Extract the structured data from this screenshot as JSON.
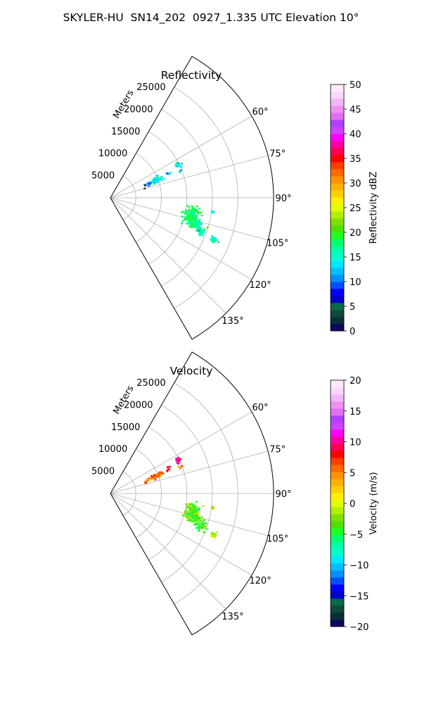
{
  "figure": {
    "title": "SKYLER-HU  SN14_202  0927_1.335 UTC Elevation 10°"
  },
  "chart_data": [
    {
      "type": "scatter",
      "subtype": "polar-sector",
      "title": "Reflectivity",
      "radial_label": "Meters",
      "radial_ticks": [
        "5000",
        "10000",
        "15000",
        "20000",
        "25000"
      ],
      "radial_ticks_values": [
        5000,
        10000,
        15000,
        20000,
        25000
      ],
      "rlim": [
        0,
        32000
      ],
      "azimuth_range_deg": [
        30,
        150
      ],
      "angle_ticks": [
        "60°",
        "75°",
        "90°",
        "105°",
        "120°",
        "135°"
      ],
      "angle_ticks_values": [
        60,
        75,
        90,
        105,
        120,
        135
      ],
      "grid": true,
      "colorbar": {
        "label": "Reflectivity dBZ",
        "range": [
          0,
          50
        ],
        "ticks": [
          "0",
          "5",
          "10",
          "15",
          "20",
          "25",
          "30",
          "35",
          "40",
          "45",
          "50"
        ],
        "ticks_values": [
          0,
          5,
          10,
          15,
          20,
          25,
          30,
          35,
          40,
          45,
          50
        ],
        "colormap": [
          "#0a0a5a",
          "#0b2f3a",
          "#0f4a3c",
          "#0a6a46",
          "#0000c8",
          "#0000ff",
          "#0050ff",
          "#0090ff",
          "#00c0ff",
          "#00e8ff",
          "#00ffd0",
          "#00ffa8",
          "#00ff70",
          "#20ff20",
          "#50e000",
          "#80e000",
          "#b0f000",
          "#e0ff00",
          "#fff000",
          "#ffd000",
          "#ffb000",
          "#ff9000",
          "#ff6a00",
          "#ff3c00",
          "#ff0000",
          "#ff0050",
          "#ff00a0",
          "#ff00ff",
          "#d040ff",
          "#b040ff",
          "#e070f0",
          "#f090f0",
          "#f0b8f8",
          "#f8d8fc",
          "#fde8fe"
        ],
        "placement": "right"
      },
      "clusters": [
        {
          "az": 64,
          "r": 14800,
          "dr": 650,
          "daz": 2.5,
          "value": 13,
          "n": 18
        },
        {
          "az": 69,
          "r": 14800,
          "dr": 380,
          "daz": 1.3,
          "value": 13,
          "n": 5
        },
        {
          "az": 69,
          "r": 9800,
          "dr": 1050,
          "daz": 2.8,
          "value": 14,
          "n": 70
        },
        {
          "az": 70,
          "r": 8000,
          "dr": 380,
          "daz": 2.2,
          "value": 9,
          "n": 18
        },
        {
          "az": 73,
          "r": 7200,
          "dr": 300,
          "daz": 3.5,
          "value": 4,
          "n": 4
        },
        {
          "az": 67,
          "r": 12300,
          "dr": 500,
          "daz": 2,
          "value": 12,
          "n": 7
        },
        {
          "az": 98,
          "r": 20300,
          "dr": 250,
          "daz": 0.8,
          "value": 15,
          "n": 5
        },
        {
          "az": 102,
          "r": 16400,
          "dr": 1500,
          "daz": 5.5,
          "value": 18,
          "n": 150
        },
        {
          "az": 107,
          "r": 17300,
          "dr": 1500,
          "daz": 3,
          "value": 17,
          "n": 80
        },
        {
          "az": 110,
          "r": 18900,
          "dr": 900,
          "daz": 2.2,
          "value": 16,
          "n": 45
        },
        {
          "az": 112,
          "r": 21900,
          "dr": 700,
          "daz": 1.5,
          "value": 15,
          "n": 30
        }
      ]
    },
    {
      "type": "scatter",
      "subtype": "polar-sector",
      "title": "Velocity",
      "radial_label": "Meters",
      "radial_ticks": [
        "5000",
        "10000",
        "15000",
        "20000",
        "25000"
      ],
      "radial_ticks_values": [
        5000,
        10000,
        15000,
        20000,
        25000
      ],
      "rlim": [
        0,
        32000
      ],
      "azimuth_range_deg": [
        30,
        150
      ],
      "angle_ticks": [
        "60°",
        "75°",
        "90°",
        "105°",
        "120°",
        "135°"
      ],
      "angle_ticks_values": [
        60,
        75,
        90,
        105,
        120,
        135
      ],
      "grid": true,
      "colorbar": {
        "label": "Velocity (m/s)",
        "range": [
          -20,
          20
        ],
        "ticks": [
          "−20",
          "−15",
          "−10",
          "−5",
          "0",
          "5",
          "10",
          "15",
          "20"
        ],
        "ticks_values": [
          -20,
          -15,
          -10,
          -5,
          0,
          5,
          10,
          15,
          20
        ],
        "colormap": [
          "#0a0a5a",
          "#0b2f3a",
          "#0f4a3c",
          "#0a6a46",
          "#0000c8",
          "#0000ff",
          "#0050ff",
          "#0090ff",
          "#00c0ff",
          "#00e8ff",
          "#00ffd0",
          "#00ffa8",
          "#00ff70",
          "#20ff20",
          "#50e000",
          "#80e000",
          "#b0f000",
          "#e0ff00",
          "#fff000",
          "#ffd000",
          "#ffb000",
          "#ff9000",
          "#ff6a00",
          "#ff3c00",
          "#ff0000",
          "#ff0050",
          "#ff00a0",
          "#ff00ff",
          "#d040ff",
          "#b040ff",
          "#e070f0",
          "#f090f0",
          "#f0b8f8",
          "#f8d8fc",
          "#fde8fe"
        ],
        "placement": "right"
      },
      "clusters": [
        {
          "az": 64,
          "r": 14800,
          "dr": 650,
          "daz": 2.5,
          "value": 11,
          "n": 18
        },
        {
          "az": 69,
          "r": 14800,
          "dr": 380,
          "daz": 1.3,
          "value": 5,
          "n": 5
        },
        {
          "az": 69,
          "r": 9800,
          "dr": 1050,
          "daz": 2.8,
          "value": 5,
          "n": 70
        },
        {
          "az": 70,
          "r": 8000,
          "dr": 380,
          "daz": 2.2,
          "value": 4,
          "n": 18
        },
        {
          "az": 73,
          "r": 7200,
          "dr": 300,
          "daz": 3.5,
          "value": 7,
          "n": 4
        },
        {
          "az": 67,
          "r": 12300,
          "dr": 500,
          "daz": 2,
          "value": 8,
          "n": 7
        },
        {
          "az": 98,
          "r": 20300,
          "dr": 250,
          "daz": 0.8,
          "value": 0,
          "n": 5
        },
        {
          "az": 102,
          "r": 16400,
          "dr": 1500,
          "daz": 5.5,
          "value": -3,
          "n": 150
        },
        {
          "az": 107,
          "r": 17300,
          "dr": 1500,
          "daz": 3,
          "value": -3,
          "n": 80
        },
        {
          "az": 110,
          "r": 18900,
          "dr": 900,
          "daz": 2.2,
          "value": -4,
          "n": 45
        },
        {
          "az": 112,
          "r": 21900,
          "dr": 700,
          "daz": 1.5,
          "value": -1,
          "n": 30
        }
      ]
    }
  ]
}
